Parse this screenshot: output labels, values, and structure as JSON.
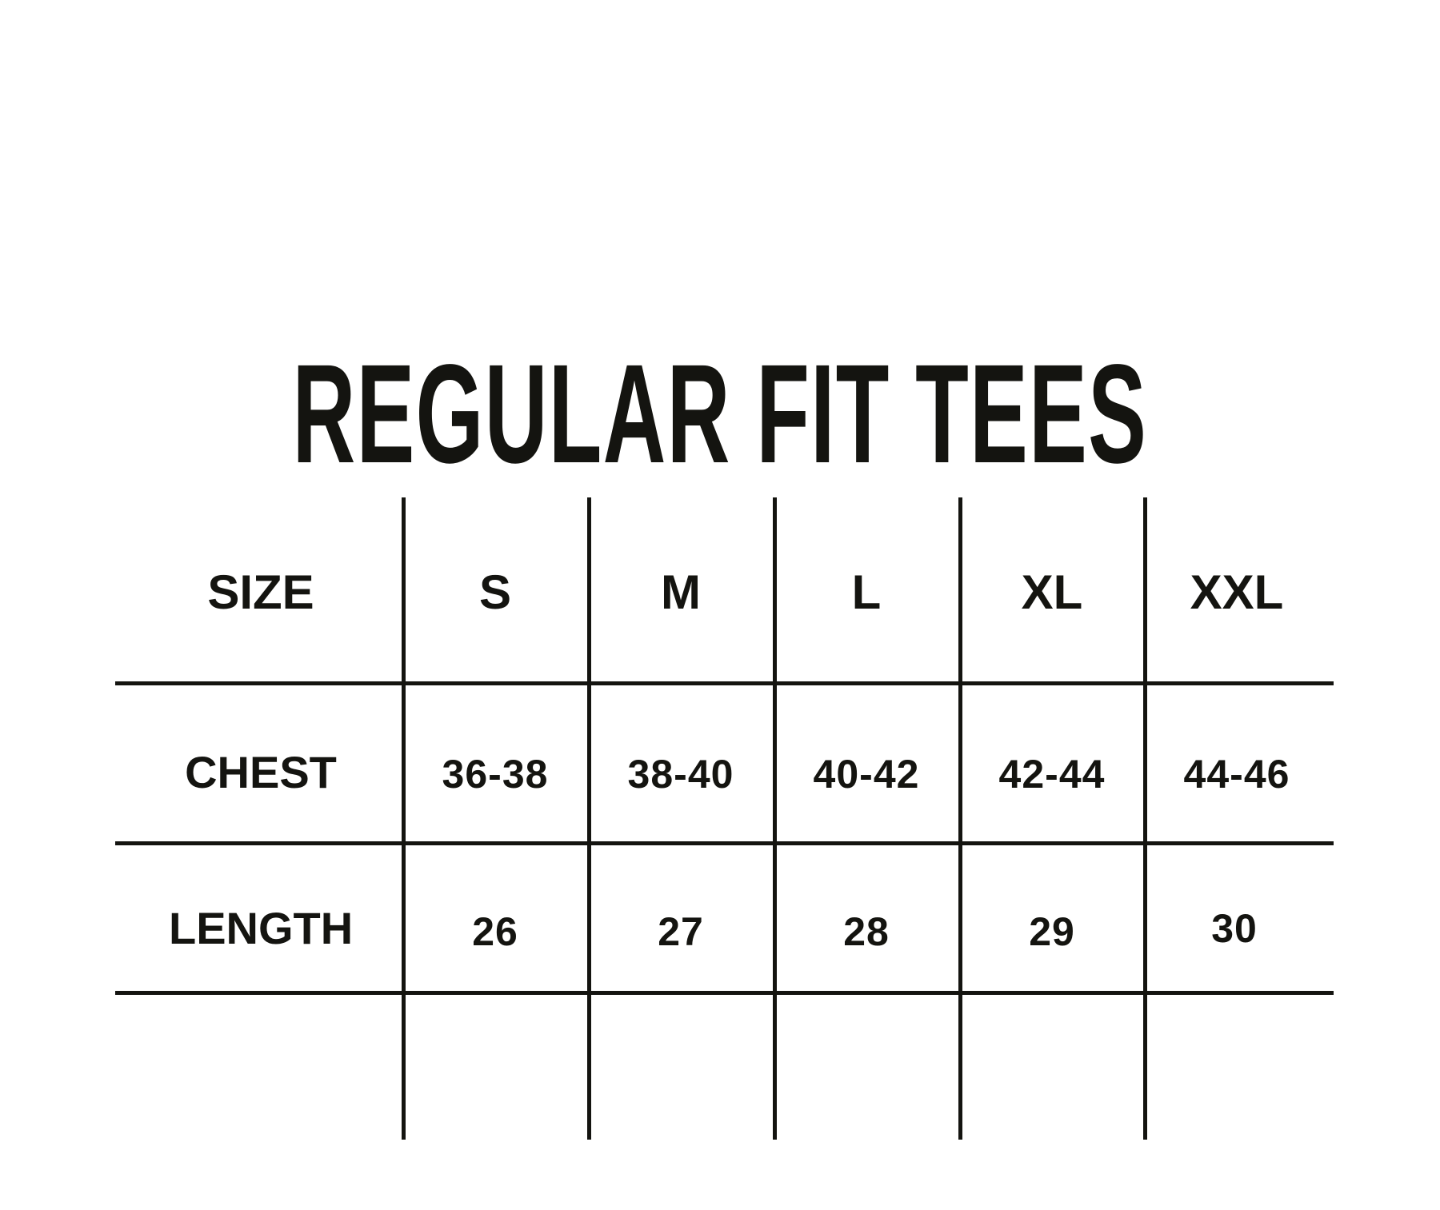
{
  "title": "REGULAR FIT TEES",
  "table": {
    "header": [
      "SIZE",
      "S",
      "M",
      "L",
      "XL",
      "XXL"
    ],
    "rows": [
      {
        "label": "CHEST",
        "values": [
          "36-38",
          "38-40",
          "40-42",
          "42-44",
          "44-46"
        ]
      },
      {
        "label": "LENGTH",
        "values": [
          "26",
          "27",
          "28",
          "29",
          "30"
        ]
      }
    ]
  },
  "colors": {
    "ink": "#141410",
    "background": "#ffffff"
  }
}
